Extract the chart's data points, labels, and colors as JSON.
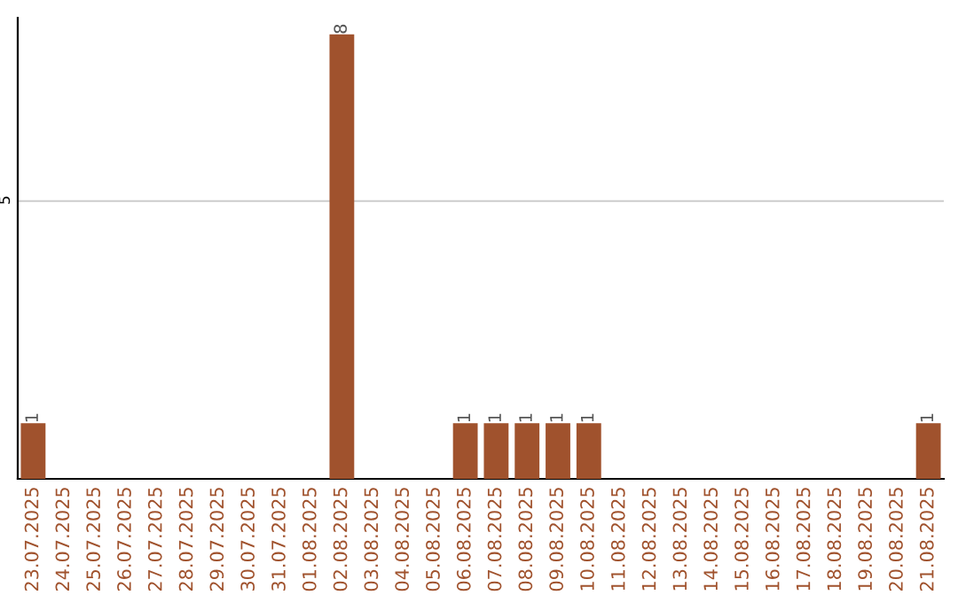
{
  "chart_data": {
    "type": "bar",
    "categories": [
      "23.07.2025",
      "24.07.2025",
      "25.07.2025",
      "26.07.2025",
      "27.07.2025",
      "28.07.2025",
      "29.07.2025",
      "30.07.2025",
      "31.07.2025",
      "01.08.2025",
      "02.08.2025",
      "03.08.2025",
      "04.08.2025",
      "05.08.2025",
      "06.08.2025",
      "07.08.2025",
      "08.08.2025",
      "09.08.2025",
      "10.08.2025",
      "11.08.2025",
      "12.08.2025",
      "13.08.2025",
      "14.08.2025",
      "15.08.2025",
      "16.08.2025",
      "17.08.2025",
      "18.08.2025",
      "19.08.2025",
      "20.08.2025",
      "21.08.2025"
    ],
    "values": [
      1,
      0,
      0,
      0,
      0,
      0,
      0,
      0,
      0,
      0,
      8,
      0,
      0,
      0,
      1,
      1,
      1,
      1,
      1,
      0,
      0,
      0,
      0,
      0,
      0,
      0,
      0,
      0,
      0,
      1
    ],
    "value_labels": [
      "1",
      null,
      null,
      null,
      null,
      null,
      null,
      null,
      null,
      null,
      "8",
      null,
      null,
      null,
      "1",
      "1",
      "1",
      "1",
      "1",
      null,
      null,
      null,
      null,
      null,
      null,
      null,
      null,
      null,
      null,
      "1"
    ],
    "color": "#a0522d",
    "ylim": [
      0,
      8.3
    ],
    "yticks": [
      5
    ],
    "grid": "y"
  }
}
